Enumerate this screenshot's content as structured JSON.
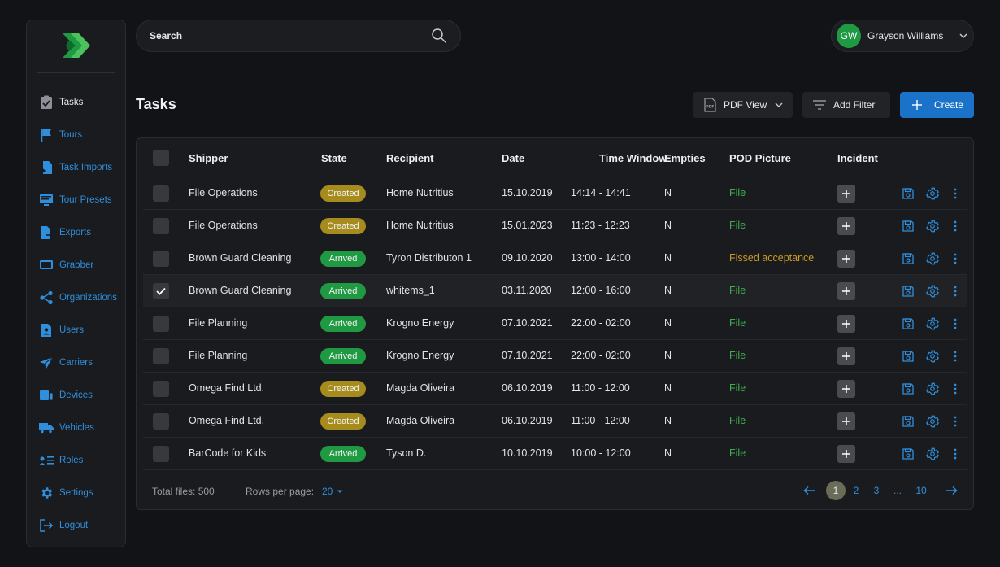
{
  "sidebar": {
    "items": [
      {
        "label": "Tasks",
        "icon": "clipboard-check-icon",
        "active": true
      },
      {
        "label": "Tours",
        "icon": "flag-icon"
      },
      {
        "label": "Task Imports",
        "icon": "file-import-icon"
      },
      {
        "label": "Tour Presets",
        "icon": "presets-icon"
      },
      {
        "label": "Exports",
        "icon": "file-export-icon"
      },
      {
        "label": "Grabber",
        "icon": "monitor-icon"
      },
      {
        "label": "Organizations",
        "icon": "share-icon"
      },
      {
        "label": "Users",
        "icon": "user-file-icon"
      },
      {
        "label": "Carriers",
        "icon": "airplane-icon"
      },
      {
        "label": "Devices",
        "icon": "devices-icon"
      },
      {
        "label": "Vehicles",
        "icon": "truck-icon"
      },
      {
        "label": "Roles",
        "icon": "roles-icon"
      },
      {
        "label": "Settings",
        "icon": "gear-icon"
      },
      {
        "label": "Logout",
        "icon": "logout-icon"
      }
    ]
  },
  "header": {
    "search_placeholder": "Search",
    "user": {
      "initials": "GW",
      "name": "Grayson Williams"
    }
  },
  "toolbar": {
    "title": "Tasks",
    "pdf_label": "PDF View",
    "filter_label": "Add Filter",
    "create_label": "Create"
  },
  "table": {
    "columns": [
      "Shipper",
      "State",
      "Recipient",
      "Date",
      "Time Window",
      "Empties",
      "POD Picture",
      "Incident"
    ],
    "rows": [
      {
        "shipper": "File Operations",
        "state": "Created",
        "recipient": "Home Nutritius",
        "date": "15.10.2019",
        "time": "14:14 - 14:41",
        "empties": "N",
        "pod": "File",
        "selected": false
      },
      {
        "shipper": "File Operations",
        "state": "Created",
        "recipient": "Home Nutritius",
        "date": "15.01.2023",
        "time": "11:23 - 12:23",
        "empties": "N",
        "pod": "File",
        "selected": false
      },
      {
        "shipper": "Brown Guard Cleaning",
        "state": "Arrived",
        "recipient": "Tyron Distributon 1",
        "date": "09.10.2020",
        "time": "13:00 - 14:00",
        "empties": "N",
        "pod": "Fissed acceptance",
        "selected": false
      },
      {
        "shipper": "Brown Guard Cleaning",
        "state": "Arrived",
        "recipient": "whitems_1",
        "date": "03.11.2020",
        "time": "12:00 - 16:00",
        "empties": "N",
        "pod": "File",
        "selected": true
      },
      {
        "shipper": "File Planning",
        "state": "Arrived",
        "recipient": "Krogno Energy",
        "date": "07.10.2021",
        "time": "22:00 - 02:00",
        "empties": "N",
        "pod": "File",
        "selected": false
      },
      {
        "shipper": "File Planning",
        "state": "Arrived",
        "recipient": "Krogno Energy",
        "date": "07.10.2021",
        "time": "22:00 - 02:00",
        "empties": "N",
        "pod": "File",
        "selected": false
      },
      {
        "shipper": "Omega Find Ltd.",
        "state": "Created",
        "recipient": "Magda Oliveira",
        "date": "06.10.2019",
        "time": "11:00 - 12:00",
        "empties": "N",
        "pod": "File",
        "selected": false
      },
      {
        "shipper": "Omega Find Ltd.",
        "state": "Created",
        "recipient": "Magda Oliveira",
        "date": "06.10.2019",
        "time": "11:00 - 12:00",
        "empties": "N",
        "pod": "File",
        "selected": false
      },
      {
        "shipper": "BarCode for Kids",
        "state": "Arrived",
        "recipient": "Tyson D.",
        "date": "10.10.2019",
        "time": "10:00 - 12:00",
        "empties": "N",
        "pod": "File",
        "selected": false
      }
    ]
  },
  "footer": {
    "total_label": "Total files: 500",
    "rows_per_page_label": "Rows per page:",
    "rows_per_page_value": "20",
    "pages": [
      "1",
      "2",
      "3",
      "...",
      "10"
    ],
    "current_page": "1"
  },
  "colors": {
    "accent": "#1a73c8",
    "link": "#2f8fdd",
    "created": "#a68c1c",
    "arrived": "#1f9a43",
    "file": "#3fae4f",
    "warning": "#c99a26"
  }
}
